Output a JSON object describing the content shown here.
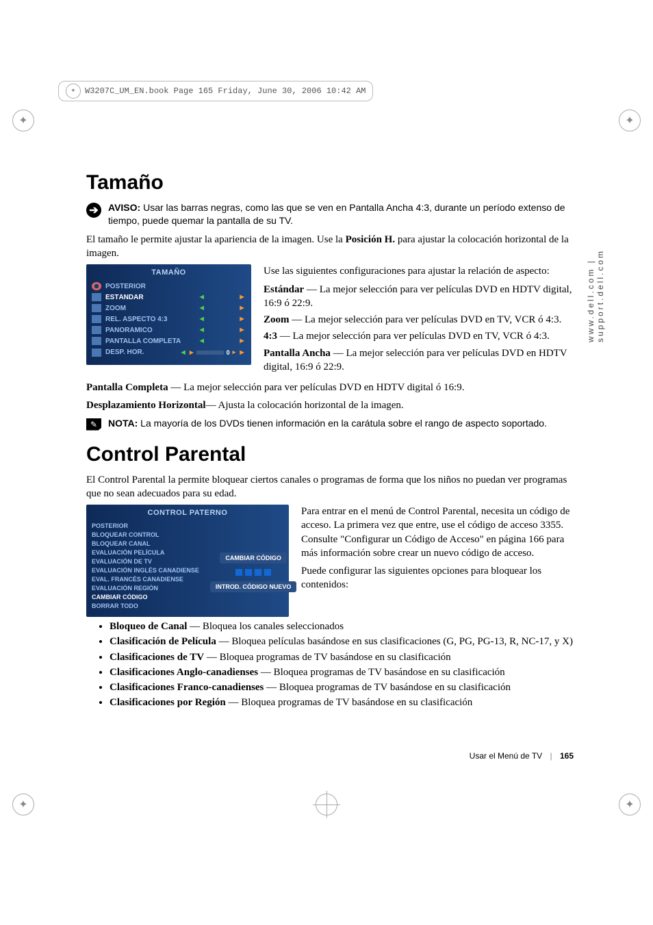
{
  "header_line": "W3207C_UM_EN.book  Page 165  Friday, June 30, 2006  10:42 AM",
  "side_url": "www.dell.com | support.dell.com",
  "section1_title": "Tamaño",
  "aviso": {
    "label": "AVISO:",
    "text": " Usar las barras negras, como las que se ven en Pantalla Ancha 4:3, durante un período extenso de tiempo, puede quemar la pantalla de su TV."
  },
  "para_intro1a": "El tamaño le permite ajustar la apariencia de la imagen. Use la ",
  "para_intro1b": "Posición H.",
  "para_intro1c": " para ajustar la colocación horizontal de la imagen.",
  "menu_tamano": {
    "title": "TAMAÑO",
    "rows": [
      {
        "label": "POSTERIOR",
        "arrows": false,
        "highlight": false,
        "iconType": "prohibit"
      },
      {
        "label": "ESTÁNDAR",
        "arrows": true,
        "highlight": true,
        "iconType": "box"
      },
      {
        "label": "ZOOM",
        "arrows": true,
        "highlight": false,
        "iconType": "box"
      },
      {
        "label": "REL. ASPECTO 4:3",
        "arrows": true,
        "highlight": false,
        "iconType": "box"
      },
      {
        "label": "PANORÁMICO",
        "arrows": true,
        "highlight": false,
        "iconType": "box"
      },
      {
        "label": "PANTALLA COMPLETA",
        "arrows": true,
        "highlight": false,
        "iconType": "box"
      },
      {
        "label": "DESP. HOR.",
        "arrows": false,
        "slider": true,
        "highlight": false,
        "iconType": "box"
      }
    ],
    "slider_value": "0"
  },
  "aspect_intro": "Use las siguientes configuraciones para ajustar la relación de aspecto:",
  "defs": [
    {
      "term": "Estándar",
      "text": " — La mejor selección para ver películas DVD en HDTV digital, 16:9 ó 22:9."
    },
    {
      "term": "Zoom",
      "text": " — La mejor selección para ver películas DVD en TV, VCR ó 4:3."
    },
    {
      "term": "4:3",
      "text": " — La mejor selección para ver películas DVD en TV, VCR ó 4:3."
    },
    {
      "term": "Pantalla Ancha",
      "text": " — La mejor selección para ver películas DVD en HDTV digital, 16:9 ó 22:9."
    }
  ],
  "full_line": {
    "term": "Pantalla Completa",
    "text": " — La mejor selección para ver películas DVD en HDTV digital ó 16:9."
  },
  "desp_line": {
    "term": "Desplazamiento Horizontal",
    "text": "— Ajusta la colocación horizontal de la imagen."
  },
  "nota": {
    "label": "NOTA:",
    "text": "  La mayoría de los DVDs tienen información en la carátula sobre el rango de aspecto soportado."
  },
  "section2_title": "Control Parental",
  "para_cp_intro": "El Control Parental la permite bloquear ciertos canales o programas de forma que los niños no puedan ver programas que no sean adecuados para su edad.",
  "menu_parental": {
    "title": "CONTROL PATERNO",
    "items": [
      "POSTERIOR",
      "BLOQUEAR CONTROL",
      "BLOQUEAR CANAL",
      "EVALUACIÓN PELÍCULA",
      "EVALUACIÓN DE TV",
      "EVALUACIÓN INGLÉS CANADIENSE",
      "EVAL. FRANCÉS CANADIENSE",
      "EVALUACIÓN REGIÓN",
      "CAMBIAR CÓDIGO",
      "BORRAR TODO"
    ],
    "highlight_index": 8,
    "btn1": "CAMBIAR CÓDIGO",
    "btn2": "INTROD. CÓDIGO NUEVO"
  },
  "cp_right1": "Para entrar en el menú de Control Parental, necesita un código de acceso. La primera vez que entre, use el código de acceso 3355. Consulte \"Configurar un Código de Acceso\" en página  166 para más información sobre crear un nuevo código de acceso.",
  "cp_right2": "Puede configurar las siguientes opciones para bloquear los contenidos:",
  "bullets": [
    {
      "term": "Bloqueo de Canal",
      "text": " — Bloquea los canales seleccionados"
    },
    {
      "term": "Clasificación de Película",
      "text": " — Bloquea películas basándose en sus clasificaciones (G, PG, PG-13, R, NC-17, y X)"
    },
    {
      "term": "Clasificaciones de TV",
      "text": " — Bloquea programas de TV basándose en su clasificación"
    },
    {
      "term": "Clasificaciones Anglo-canadienses",
      "text": " — Bloquea programas de TV basándose en su clasificación"
    },
    {
      "term": "Clasificaciones Franco-canadienses",
      "text": " — Bloquea programas de TV basándose en su clasificación"
    },
    {
      "term": "Clasificaciones por Región",
      "text": " — Bloquea programas de TV basándose en su clasificación"
    }
  ],
  "footer": {
    "section": "Usar el Menú de TV",
    "page": "165"
  }
}
